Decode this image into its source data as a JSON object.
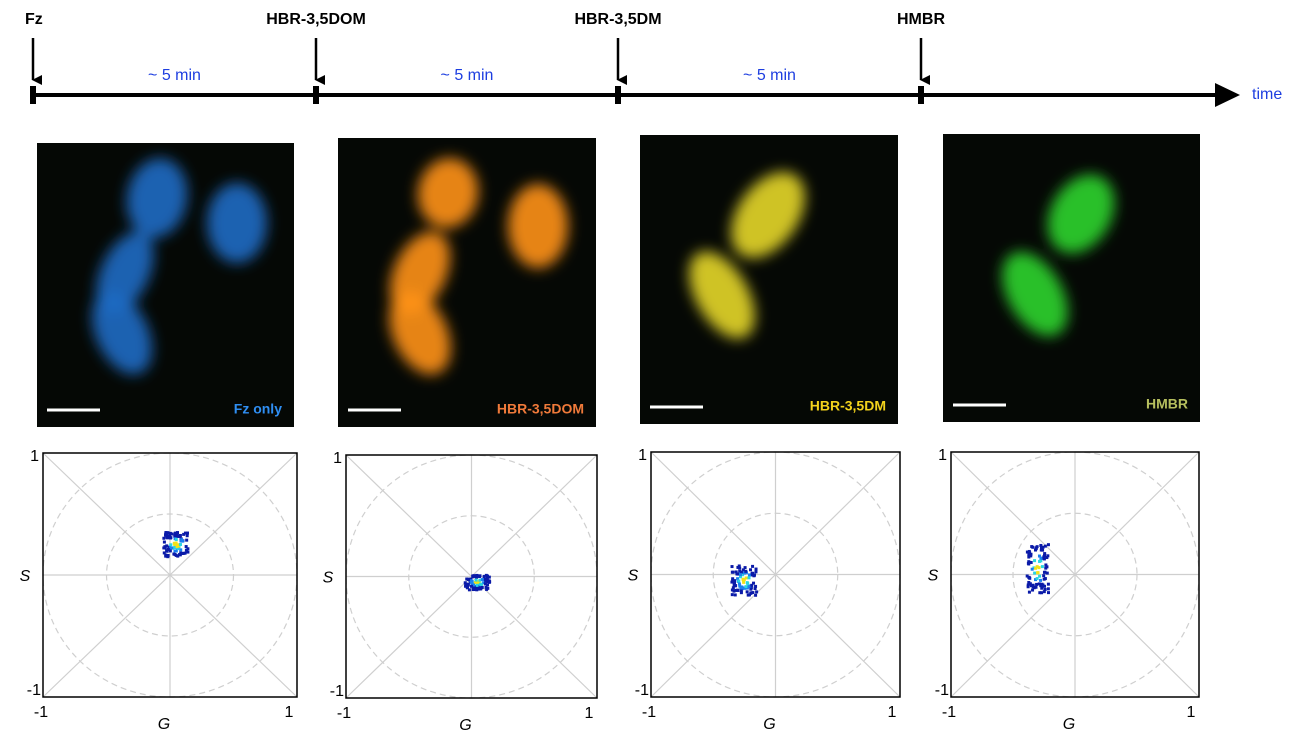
{
  "timeline": {
    "events": [
      "Fz",
      "HBR-3,5DOM",
      "HBR-3,5DM",
      "HMBR"
    ],
    "intervals": [
      "~ 5 min",
      "~ 5 min",
      "~ 5 min"
    ],
    "axis_label": "time"
  },
  "panels": [
    {
      "image_label": "Fz only",
      "plot": {
        "y_label": "S",
        "x_label": "G",
        "y_max": 1,
        "y_min": -1,
        "x_min": -1,
        "x_max": 1
      }
    },
    {
      "image_label": "HBR-3,5DOM",
      "plot": {
        "y_label": "S",
        "x_label": "G",
        "y_max": 1,
        "y_min": -1,
        "x_min": -1,
        "x_max": 1
      }
    },
    {
      "image_label": "HBR-3,5DM",
      "plot": {
        "y_label": "S",
        "x_label": "G",
        "y_max": 1,
        "y_min": -1,
        "x_min": -1,
        "x_max": 1
      }
    },
    {
      "image_label": "HMBR",
      "plot": {
        "y_label": "S",
        "x_label": "G",
        "y_max": 1,
        "y_min": -1,
        "x_min": -1,
        "x_max": 1
      }
    }
  ]
}
